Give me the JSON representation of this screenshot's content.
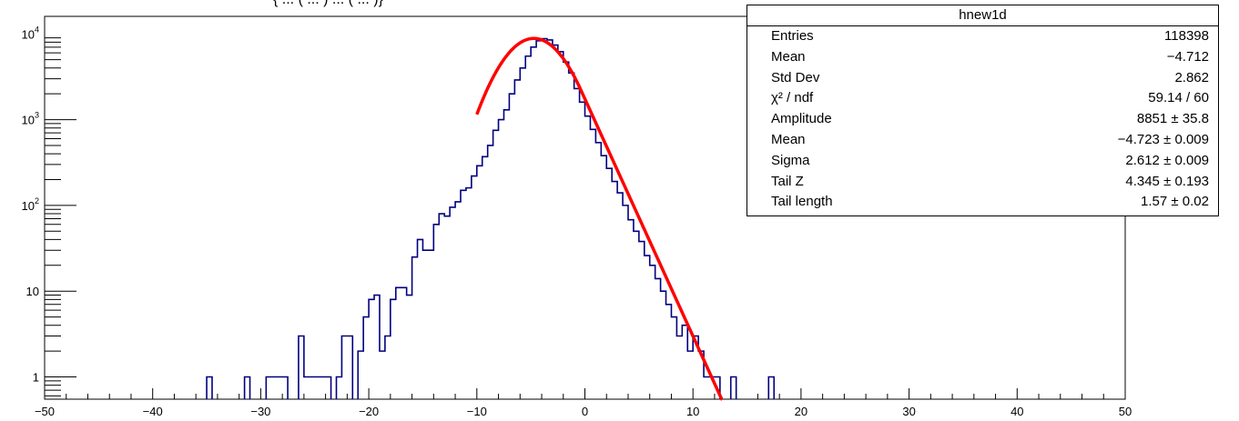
{
  "title_fragment": "{ ... ( ... ) ... ( ... )}",
  "stats": {
    "name": "hnew1d",
    "rows": [
      {
        "key": "Entries",
        "value": "118398"
      },
      {
        "key": "Mean",
        "value": "−4.712"
      },
      {
        "key": "Std Dev",
        "value": "2.862"
      },
      {
        "key": "χ² / ndf",
        "value": "59.14 / 60"
      },
      {
        "key": "Amplitude",
        "value": "8851 ± 35.8"
      },
      {
        "key": "Mean",
        "value": "−4.723 ± 0.009"
      },
      {
        "key": "Sigma",
        "value": "2.612 ± 0.009"
      },
      {
        "key": "Tail Z",
        "value": "4.345 ± 0.193"
      },
      {
        "key": "Tail length",
        "value": "1.57 ± 0.02"
      }
    ]
  },
  "chart_data": {
    "type": "histogram",
    "name": "hnew1d",
    "xlim": [
      -50,
      50
    ],
    "ylim_log": [
      0.55,
      16000
    ],
    "log_y": true,
    "x_ticks": [
      "−50",
      "−40",
      "−30",
      "−20",
      "−10",
      "0",
      "10",
      "20",
      "30",
      "40",
      "50"
    ],
    "y_ticks": [
      "1",
      "10",
      "10^2",
      "10^3",
      "10^4"
    ],
    "bin_width": 0.5,
    "bins": [
      {
        "x": -35,
        "y": 1
      },
      {
        "x": -31.5,
        "y": 1
      },
      {
        "x": -29.5,
        "y": 1
      },
      {
        "x": -29,
        "y": 1
      },
      {
        "x": -28.5,
        "y": 1
      },
      {
        "x": -28,
        "y": 1
      },
      {
        "x": -26.5,
        "y": 3
      },
      {
        "x": -26,
        "y": 1
      },
      {
        "x": -25.5,
        "y": 1
      },
      {
        "x": -25,
        "y": 1
      },
      {
        "x": -24.5,
        "y": 1
      },
      {
        "x": -24,
        "y": 1
      },
      {
        "x": -23,
        "y": 1
      },
      {
        "x": -22.5,
        "y": 3
      },
      {
        "x": -22,
        "y": 3
      },
      {
        "x": -21,
        "y": 2
      },
      {
        "x": -20.5,
        "y": 5
      },
      {
        "x": -20,
        "y": 8
      },
      {
        "x": -19.5,
        "y": 9
      },
      {
        "x": -19,
        "y": 2
      },
      {
        "x": -18.5,
        "y": 3
      },
      {
        "x": -18,
        "y": 8
      },
      {
        "x": -17.5,
        "y": 11
      },
      {
        "x": -17,
        "y": 11
      },
      {
        "x": -16.5,
        "y": 9
      },
      {
        "x": -16,
        "y": 25
      },
      {
        "x": -15.5,
        "y": 40
      },
      {
        "x": -15,
        "y": 30
      },
      {
        "x": -14.5,
        "y": 30
      },
      {
        "x": -14,
        "y": 60
      },
      {
        "x": -13.5,
        "y": 80
      },
      {
        "x": -13,
        "y": 75
      },
      {
        "x": -12.5,
        "y": 95
      },
      {
        "x": -12,
        "y": 110
      },
      {
        "x": -11.5,
        "y": 150
      },
      {
        "x": -11,
        "y": 160
      },
      {
        "x": -10.5,
        "y": 220
      },
      {
        "x": -10,
        "y": 290
      },
      {
        "x": -9.5,
        "y": 370
      },
      {
        "x": -9,
        "y": 500
      },
      {
        "x": -8.5,
        "y": 750
      },
      {
        "x": -8,
        "y": 1000
      },
      {
        "x": -7.5,
        "y": 1300
      },
      {
        "x": -7,
        "y": 2000
      },
      {
        "x": -6.5,
        "y": 2900
      },
      {
        "x": -6,
        "y": 4000
      },
      {
        "x": -5.5,
        "y": 5500
      },
      {
        "x": -5,
        "y": 7000
      },
      {
        "x": -4.5,
        "y": 8300
      },
      {
        "x": -4,
        "y": 8800
      },
      {
        "x": -3.5,
        "y": 8500
      },
      {
        "x": -3,
        "y": 7400
      },
      {
        "x": -2.5,
        "y": 6200
      },
      {
        "x": -2,
        "y": 4700
      },
      {
        "x": -1.5,
        "y": 3500
      },
      {
        "x": -1,
        "y": 2300
      },
      {
        "x": -0.5,
        "y": 1600
      },
      {
        "x": 0,
        "y": 1100
      },
      {
        "x": 0.5,
        "y": 770
      },
      {
        "x": 1,
        "y": 540
      },
      {
        "x": 1.5,
        "y": 380
      },
      {
        "x": 2,
        "y": 270
      },
      {
        "x": 2.5,
        "y": 190
      },
      {
        "x": 3,
        "y": 140
      },
      {
        "x": 3.5,
        "y": 100
      },
      {
        "x": 4,
        "y": 68
      },
      {
        "x": 4.5,
        "y": 50
      },
      {
        "x": 5,
        "y": 38
      },
      {
        "x": 5.5,
        "y": 26
      },
      {
        "x": 6,
        "y": 20
      },
      {
        "x": 6.5,
        "y": 14
      },
      {
        "x": 7,
        "y": 10
      },
      {
        "x": 7.5,
        "y": 7
      },
      {
        "x": 8,
        "y": 5
      },
      {
        "x": 8.5,
        "y": 3
      },
      {
        "x": 9,
        "y": 4
      },
      {
        "x": 9.5,
        "y": 2
      },
      {
        "x": 10,
        "y": 3
      },
      {
        "x": 10.5,
        "y": 2
      },
      {
        "x": 11,
        "y": 1
      },
      {
        "x": 11.5,
        "y": 1
      },
      {
        "x": 12,
        "y": 1
      },
      {
        "x": 13.5,
        "y": 1
      },
      {
        "x": 17,
        "y": 1
      }
    ],
    "fit": {
      "function": "gaussian with exponential tail",
      "x_range": [
        -10,
        12.8
      ],
      "amplitude": 8851,
      "mean": -4.723,
      "sigma": 2.612,
      "tail_z": 4.345,
      "tail_length": 1.57
    },
    "colors": {
      "histogram": "#000080",
      "fit": "#ff0000",
      "axis": "#000000"
    }
  }
}
